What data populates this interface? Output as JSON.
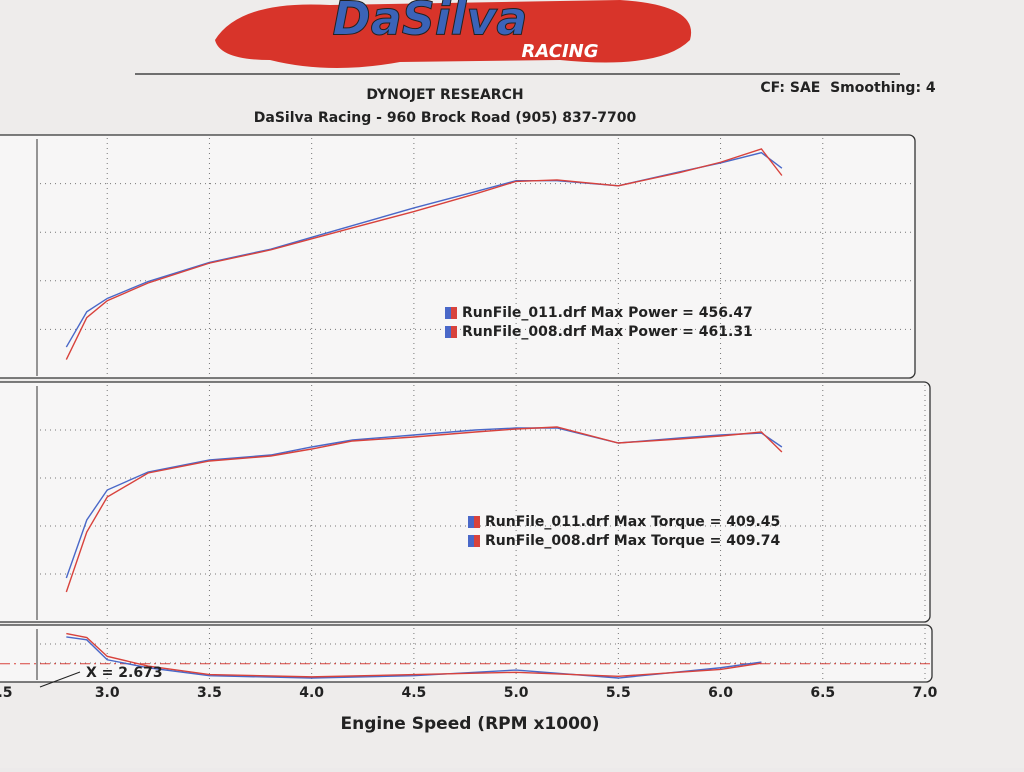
{
  "header": {
    "logo": "DaSilva",
    "logo_sub": "RACING",
    "title": "DYNOJET RESEARCH",
    "subtitle": "DaSilva Racing - 960 Brock Road (905) 837-7700",
    "settings": "CF: SAE  Smoothing: 4"
  },
  "chart_data": [
    {
      "type": "line",
      "xlim": [
        2.5,
        7.0
      ],
      "ylim": [
        150,
        480
      ],
      "grid": true,
      "x": [
        2.8,
        2.9,
        3.0,
        3.2,
        3.5,
        3.8,
        4.0,
        4.2,
        4.5,
        4.8,
        5.0,
        5.2,
        5.5,
        5.8,
        6.0,
        6.2,
        6.3
      ],
      "series": [
        {
          "name": "RunFile_011.drf Max Power = 456.47",
          "color": "#4a68c8",
          "values": [
            192,
            240,
            258,
            281,
            307,
            325,
            341,
            357,
            381,
            403,
            418,
            418,
            411,
            430,
            442,
            456,
            435
          ]
        },
        {
          "name": "RunFile_008.drf Max Power = 461.31",
          "color": "#d8423c",
          "values": [
            175,
            232,
            255,
            279,
            306,
            324,
            339,
            354,
            376,
            400,
            417,
            419,
            411,
            429,
            443,
            461,
            425
          ]
        }
      ]
    },
    {
      "type": "line",
      "xlim": [
        2.5,
        7.0
      ],
      "ylim": [
        215,
        455
      ],
      "grid": true,
      "x": [
        2.8,
        2.9,
        3.0,
        3.2,
        3.5,
        3.8,
        4.0,
        4.2,
        4.5,
        4.8,
        5.0,
        5.2,
        5.5,
        5.8,
        6.0,
        6.2,
        6.3
      ],
      "series": [
        {
          "name": "RunFile_011.drf Max Torque = 409.45",
          "color": "#4a68c8",
          "values": [
            259,
            317,
            347,
            365,
            377,
            382,
            390,
            397,
            402,
            407,
            409,
            409,
            394,
            399,
            402,
            404,
            390
          ]
        },
        {
          "name": "RunFile_008.drf Max Torque = 409.74",
          "color": "#d8423c",
          "values": [
            245,
            305,
            340,
            364,
            376,
            381,
            388,
            396,
            400,
            405,
            408,
            410,
            394,
            398,
            401,
            405,
            385
          ]
        }
      ]
    },
    {
      "type": "line",
      "xlim": [
        2.5,
        7.0
      ],
      "ylim": [
        10,
        20
      ],
      "grid": true,
      "x": [
        2.8,
        2.9,
        3.0,
        3.2,
        3.5,
        4.0,
        4.5,
        5.0,
        5.5,
        6.0,
        6.2
      ],
      "series": [
        {
          "color": "#4a68c8",
          "values": [
            17.9,
            17.4,
            13.9,
            12.5,
            11.1,
            10.7,
            11.1,
            12.1,
            10.7,
            12.5,
            13.5
          ]
        },
        {
          "color": "#d8423c",
          "values": [
            18.5,
            17.8,
            14.5,
            12.8,
            11.3,
            10.9,
            11.3,
            11.7,
            11.0,
            12.2,
            13.3
          ]
        }
      ],
      "ref_line": 13.2,
      "annotation": "X = 2.673",
      "xlabel": "Engine Speed (RPM x1000)",
      "xticks": [
        {
          "value": 2.5,
          "label": ".5"
        },
        {
          "value": 3,
          "label": "3.0"
        },
        3.5,
        {
          "value": 4,
          "label": "4.0"
        },
        4.5,
        {
          "value": 5,
          "label": "5.0"
        },
        5.5,
        {
          "value": 6,
          "label": "6.0"
        },
        6.5,
        {
          "value": 7,
          "label": "7.0"
        }
      ]
    }
  ]
}
